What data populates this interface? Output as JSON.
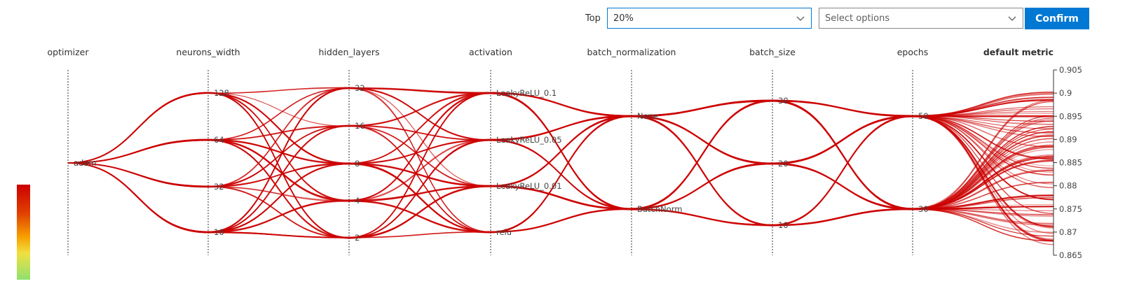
{
  "toolbar": {
    "top_label": "Top",
    "top_value": "20%",
    "options_placeholder": "Select options",
    "confirm_label": "Confirm"
  },
  "colors": {
    "line": "#cc0000",
    "axis": "#333333",
    "confirm_bg": "#0078d4"
  },
  "icons": {
    "dropdown": "chevron-down-icon"
  },
  "chart_data": {
    "type": "parallel_coordinates",
    "axes": [
      {
        "name": "optimizer",
        "type": "categorical",
        "ticks": [
          "adam"
        ]
      },
      {
        "name": "neurons_width",
        "type": "categorical",
        "ticks": [
          "128",
          "64",
          "32",
          "16"
        ]
      },
      {
        "name": "hidden_layers",
        "type": "categorical",
        "ticks": [
          "32",
          "16",
          "8",
          "4",
          "2"
        ]
      },
      {
        "name": "activation",
        "type": "categorical",
        "ticks": [
          "LeakyReLU_0.1",
          "LeakyReLU_0.05",
          "LeakyReLU_0.01",
          "relu"
        ]
      },
      {
        "name": "batch_normalization",
        "type": "categorical",
        "ticks": [
          "None",
          "BatchNorm"
        ]
      },
      {
        "name": "batch_size",
        "type": "categorical",
        "ticks": [
          "30",
          "20",
          "10"
        ]
      },
      {
        "name": "epochs",
        "type": "categorical",
        "ticks": [
          "50",
          "30"
        ]
      },
      {
        "name": "default metric",
        "type": "numeric",
        "range": [
          0.865,
          0.905
        ],
        "ticks": [
          "0.905",
          "0.9",
          "0.895",
          "0.89",
          "0.885",
          "0.88",
          "0.875",
          "0.87",
          "0.865"
        ]
      }
    ]
  }
}
